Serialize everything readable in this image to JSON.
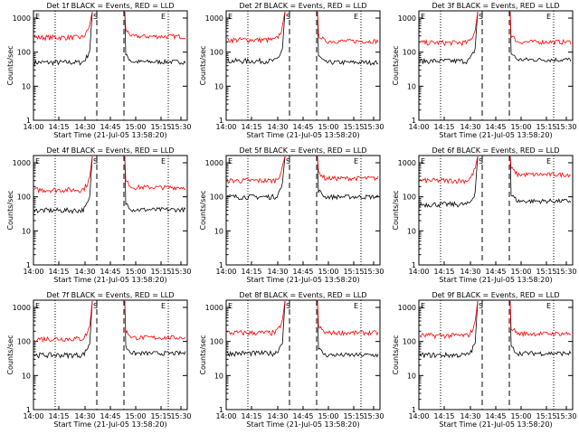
{
  "figure": {
    "xlabel": "Start Time (21-Jul-05 13:58:20)",
    "ylabel": "Counts/sec",
    "x_ticks": [
      "14:00",
      "14:15",
      "14:30",
      "14:45",
      "15:00",
      "15:15",
      "15:30"
    ],
    "y_ticks": [
      "1",
      "10",
      "100",
      "1000"
    ],
    "markers": [
      "E",
      "S",
      "E"
    ]
  },
  "chart_data": [
    {
      "type": "line",
      "title": "Det 1f BLACK = Events, RED = LLD",
      "series": [
        {
          "name": "Events",
          "color": "#000000",
          "pre": 50,
          "post": 52
        },
        {
          "name": "LLD",
          "color": "#ff0000",
          "pre": 270,
          "post": 290
        }
      ]
    },
    {
      "type": "line",
      "title": "Det 2f BLACK = Events, RED = LLD",
      "series": [
        {
          "name": "Events",
          "color": "#000000",
          "pre": 55,
          "post": 50
        },
        {
          "name": "LLD",
          "color": "#ff0000",
          "pre": 230,
          "post": 210
        }
      ]
    },
    {
      "type": "line",
      "title": "Det 3f BLACK = Events, RED = LLD",
      "series": [
        {
          "name": "Events",
          "color": "#000000",
          "pre": 55,
          "post": 60
        },
        {
          "name": "LLD",
          "color": "#ff0000",
          "pre": 190,
          "post": 200
        }
      ]
    },
    {
      "type": "line",
      "title": "Det 4f BLACK = Events, RED = LLD",
      "series": [
        {
          "name": "Events",
          "color": "#000000",
          "pre": 40,
          "post": 42
        },
        {
          "name": "LLD",
          "color": "#ff0000",
          "pre": 160,
          "post": 190
        }
      ]
    },
    {
      "type": "line",
      "title": "Det 5f BLACK = Events, RED = LLD",
      "series": [
        {
          "name": "Events",
          "color": "#000000",
          "pre": 100,
          "post": 100
        },
        {
          "name": "LLD",
          "color": "#ff0000",
          "pre": 300,
          "post": 350
        }
      ]
    },
    {
      "type": "line",
      "title": "Det 6f BLACK = Events, RED = LLD",
      "series": [
        {
          "name": "Events",
          "color": "#000000",
          "pre": 60,
          "post": 75
        },
        {
          "name": "LLD",
          "color": "#ff0000",
          "pre": 300,
          "post": 450
        }
      ]
    },
    {
      "type": "line",
      "title": "Det 7f BLACK = Events, RED = LLD",
      "series": [
        {
          "name": "Events",
          "color": "#000000",
          "pre": 40,
          "post": 45
        },
        {
          "name": "LLD",
          "color": "#ff0000",
          "pre": 120,
          "post": 130
        }
      ]
    },
    {
      "type": "line",
      "title": "Det 8f BLACK = Events, RED = LLD",
      "series": [
        {
          "name": "Events",
          "color": "#000000",
          "pre": 45,
          "post": 40
        },
        {
          "name": "LLD",
          "color": "#ff0000",
          "pre": 180,
          "post": 180
        }
      ]
    },
    {
      "type": "line",
      "title": "Det 9f BLACK = Events, RED = LLD",
      "series": [
        {
          "name": "Events",
          "color": "#000000",
          "pre": 40,
          "post": 45
        },
        {
          "name": "LLD",
          "color": "#ff0000",
          "pre": 150,
          "post": 170
        }
      ]
    }
  ]
}
